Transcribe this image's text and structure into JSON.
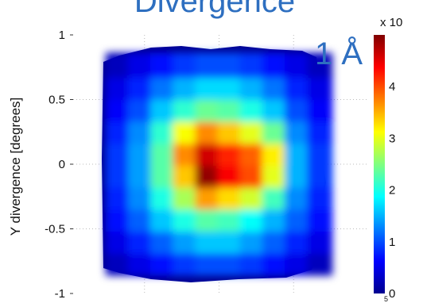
{
  "chart_data": {
    "type": "heatmap",
    "title": "Divergence",
    "overlay_text": "1 Å",
    "xlabel": "",
    "ylabel": "Y divergence [degrees]",
    "ylim": [
      -1,
      1
    ],
    "yticks": [
      "1",
      "0.5",
      "0",
      "-0.5",
      "-1"
    ],
    "grid": true,
    "colorbar": {
      "exponent_label": "x 10",
      "stub_label": "5",
      "range": [
        0,
        5
      ],
      "ticks": [
        "0",
        "1",
        "2",
        "3",
        "4"
      ]
    },
    "x_edges": [
      -0.75,
      -0.6,
      -0.45,
      -0.3,
      -0.15,
      0,
      0.15,
      0.3,
      0.45,
      0.6,
      0.75
    ],
    "y_edges": [
      -0.85,
      -0.68,
      -0.51,
      -0.34,
      -0.17,
      0,
      0.17,
      0.34,
      0.51,
      0.68,
      0.85
    ],
    "z": [
      [
        0.3,
        0.5,
        0.7,
        0.9,
        1.0,
        1.0,
        0.9,
        0.7,
        0.5,
        0.3
      ],
      [
        0.5,
        0.8,
        1.1,
        1.4,
        1.6,
        1.6,
        1.4,
        1.1,
        0.8,
        0.5
      ],
      [
        0.7,
        1.1,
        1.6,
        2.0,
        2.3,
        2.2,
        1.9,
        1.5,
        1.1,
        0.7
      ],
      [
        0.8,
        1.3,
        2.0,
        2.7,
        3.6,
        3.3,
        2.9,
        2.2,
        1.3,
        0.8
      ],
      [
        0.9,
        1.4,
        2.3,
        3.4,
        4.9,
        4.4,
        4.0,
        3.0,
        1.5,
        0.9
      ],
      [
        0.9,
        1.4,
        2.3,
        3.7,
        4.6,
        4.2,
        3.9,
        3.2,
        1.5,
        0.9
      ],
      [
        0.8,
        1.3,
        2.1,
        3.1,
        3.7,
        3.4,
        3.0,
        2.4,
        1.3,
        0.8
      ],
      [
        0.6,
        1.0,
        1.6,
        2.1,
        2.4,
        2.3,
        2.0,
        1.6,
        1.0,
        0.6
      ],
      [
        0.5,
        0.8,
        1.2,
        1.5,
        1.7,
        1.7,
        1.5,
        1.2,
        0.8,
        0.5
      ],
      [
        0.3,
        0.5,
        0.7,
        0.9,
        1.0,
        1.0,
        0.9,
        0.7,
        0.5,
        0.3
      ]
    ]
  },
  "colors": {
    "title": "#2e6fc0",
    "jet_dark": "#00008f"
  }
}
